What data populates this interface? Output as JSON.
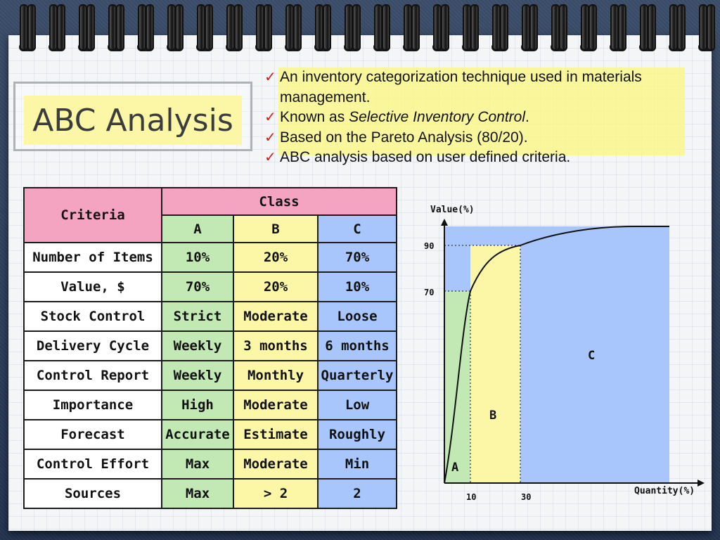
{
  "title": "ABC Analysis",
  "bullets": [
    {
      "check": "✓",
      "text": "An inventory categorization technique used in materials management."
    },
    {
      "check": "✓",
      "text_before": "Known as ",
      "text_em": "Selective Inventory Control",
      "text_after": "."
    },
    {
      "check": "✓",
      "text": "Based on the Pareto Analysis (80/20)."
    },
    {
      "check": "✓",
      "text": "ABC analysis based on user defined criteria."
    }
  ],
  "table": {
    "criteria_header": "Criteria",
    "class_header": "Class",
    "classes": [
      "A",
      "B",
      "C"
    ],
    "rows": [
      {
        "criteria": "Number of Items",
        "a": "10%",
        "b": "20%",
        "c": "70%"
      },
      {
        "criteria": "Value, $",
        "a": "70%",
        "b": "20%",
        "c": "10%"
      },
      {
        "criteria": "Stock Control",
        "a": "Strict",
        "b": "Moderate",
        "c": "Loose"
      },
      {
        "criteria": "Delivery Cycle",
        "a": "Weekly",
        "b": "3 months",
        "c": "6 months"
      },
      {
        "criteria": "Control Report",
        "a": "Weekly",
        "b": "Monthly",
        "c": "Quarterly"
      },
      {
        "criteria": "Importance",
        "a": "High",
        "b": "Moderate",
        "c": "Low"
      },
      {
        "criteria": "Forecast",
        "a": "Accurate",
        "b": "Estimate",
        "c": "Roughly"
      },
      {
        "criteria": "Control Effort",
        "a": "Max",
        "b": "Moderate",
        "c": "Min"
      },
      {
        "criteria": "Sources",
        "a": "Max",
        "b": "> 2",
        "c": "2"
      }
    ]
  },
  "chart": {
    "ylabel": "Value(%)",
    "xlabel": "Quantity(%)",
    "yticks": [
      "90",
      "70"
    ],
    "xticks": [
      "10",
      "30"
    ],
    "regions": [
      "A",
      "B",
      "C"
    ]
  },
  "colors": {
    "class_a": "#c2e8b4",
    "class_b": "#fbf7a7",
    "class_c": "#a8c6fb",
    "header_pink": "#f4a3c0",
    "check_red": "#d01c1c",
    "title_highlight": "#fbf7a7"
  }
}
